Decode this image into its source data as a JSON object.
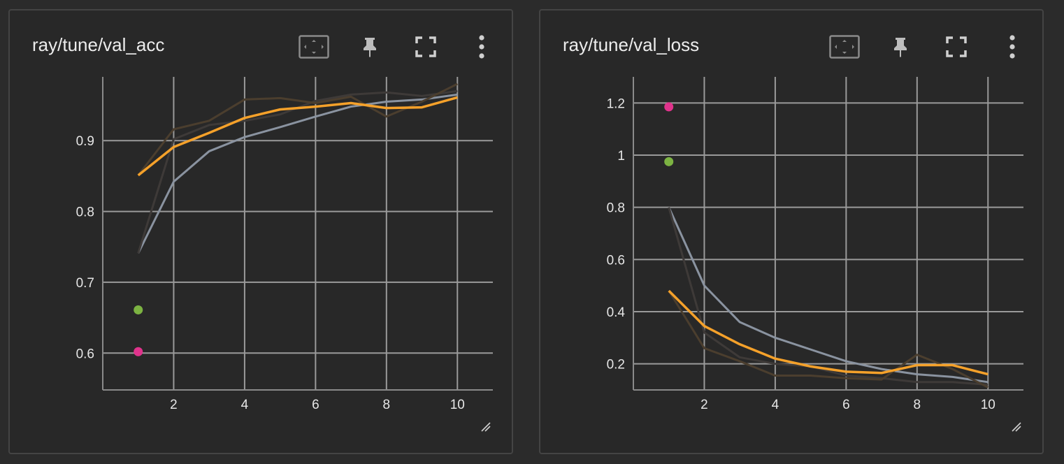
{
  "cards": [
    {
      "title": "ray/tune/val_acc",
      "chart_data": {
        "type": "line",
        "title": "ray/tune/val_acc",
        "xlabel": "",
        "ylabel": "",
        "xlim": [
          0,
          11
        ],
        "ylim": [
          0.548,
          0.99
        ],
        "x_ticks": [
          2,
          4,
          6,
          8,
          10
        ],
        "y_ticks": [
          0.6,
          0.7,
          0.8,
          0.9
        ],
        "grid": true,
        "series": [
          {
            "color": "#8a93a0",
            "x": [
              1,
              2,
              3,
              4,
              5,
              6,
              7,
              8,
              9,
              10
            ],
            "y": [
              0.741,
              0.842,
              0.885,
              0.905,
              0.919,
              0.934,
              0.948,
              0.955,
              0.958,
              0.965
            ]
          },
          {
            "color": "#3e3a38",
            "x": [
              1,
              2,
              3,
              4,
              5,
              6,
              7,
              8,
              9,
              10
            ],
            "y": [
              0.741,
              0.902,
              0.922,
              0.928,
              0.937,
              0.956,
              0.965,
              0.968,
              0.963,
              0.97
            ]
          },
          {
            "color": "#4b3e2e",
            "x": [
              1,
              2,
              3,
              4,
              5,
              6,
              7,
              8,
              9,
              10
            ],
            "y": [
              0.851,
              0.916,
              0.928,
              0.958,
              0.96,
              0.953,
              0.962,
              0.934,
              0.955,
              0.98
            ]
          },
          {
            "color": "#f5a12a",
            "x": [
              1,
              2,
              3,
              4,
              5,
              6,
              7,
              8,
              9,
              10
            ],
            "y": [
              0.851,
              0.891,
              0.911,
              0.932,
              0.944,
              0.948,
              0.953,
              0.946,
              0.947,
              0.961
            ]
          }
        ],
        "points": [
          {
            "color": "#7cb342",
            "x": 1,
            "y": 0.661
          },
          {
            "color": "#e0338c",
            "x": 1,
            "y": 0.602
          }
        ]
      }
    },
    {
      "title": "ray/tune/val_loss",
      "chart_data": {
        "type": "line",
        "title": "ray/tune/val_loss",
        "xlabel": "",
        "ylabel": "",
        "xlim": [
          0,
          11
        ],
        "ylim": [
          0.1,
          1.3
        ],
        "x_ticks": [
          2,
          4,
          6,
          8,
          10
        ],
        "y_ticks": [
          0.2,
          0.4,
          0.6,
          0.8,
          1,
          1.2
        ],
        "grid": true,
        "series": [
          {
            "color": "#8a93a0",
            "x": [
              1,
              2,
              3,
              4,
              5,
              6,
              7,
              8,
              9,
              10
            ],
            "y": [
              0.8,
              0.5,
              0.36,
              0.3,
              0.255,
              0.21,
              0.18,
              0.16,
              0.15,
              0.13
            ]
          },
          {
            "color": "#3e3a38",
            "x": [
              1,
              2,
              3,
              4,
              5,
              6,
              7,
              8,
              9,
              10
            ],
            "y": [
              0.8,
              0.32,
              0.225,
              0.2,
              0.19,
              0.155,
              0.145,
              0.13,
              0.13,
              0.12
            ]
          },
          {
            "color": "#4b3e2e",
            "x": [
              1,
              2,
              3,
              4,
              5,
              6,
              7,
              8,
              9,
              10
            ],
            "y": [
              0.48,
              0.26,
              0.21,
              0.155,
              0.155,
              0.145,
              0.14,
              0.235,
              0.18,
              0.11
            ]
          },
          {
            "color": "#f5a12a",
            "x": [
              1,
              2,
              3,
              4,
              5,
              6,
              7,
              8,
              9,
              10
            ],
            "y": [
              0.48,
              0.345,
              0.275,
              0.22,
              0.19,
              0.17,
              0.165,
              0.195,
              0.195,
              0.16
            ]
          }
        ],
        "points": [
          {
            "color": "#e0338c",
            "x": 1,
            "y": 1.185
          },
          {
            "color": "#7cb342",
            "x": 1,
            "y": 0.975
          }
        ]
      }
    }
  ],
  "toolbar_icons": [
    "fit-domain-icon",
    "pin-icon",
    "fullscreen-icon",
    "more-vert-icon"
  ],
  "colors": {
    "background": "#2b2b2b",
    "card": "#282828",
    "grid": "#9a9a9a",
    "text": "#e8e8e8"
  }
}
